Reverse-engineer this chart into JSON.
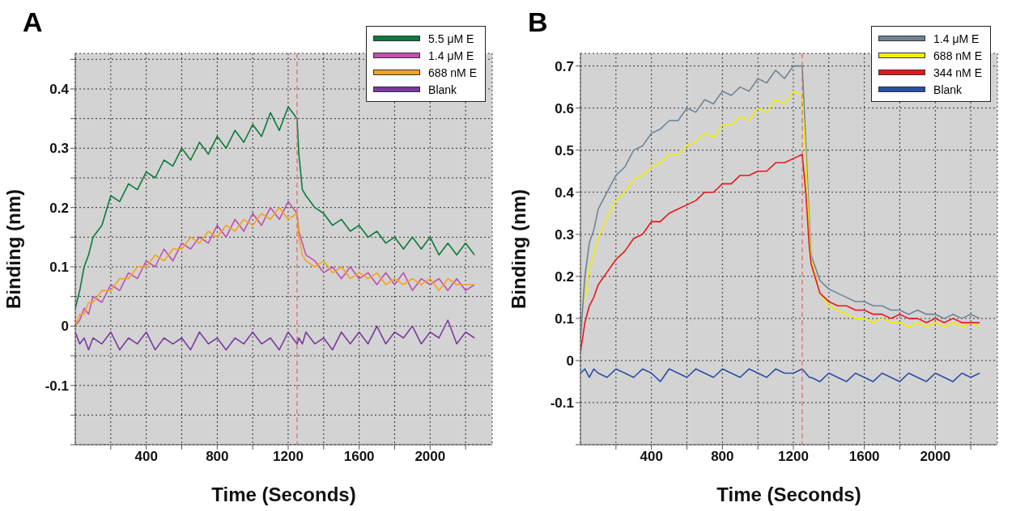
{
  "chart_data": [
    {
      "type": "line",
      "title": "A",
      "xlabel": "Time (Seconds)",
      "ylabel": "Binding (nm)",
      "xlim": [
        0,
        2350
      ],
      "ylim": [
        -0.2,
        0.46
      ],
      "xticks": [
        {
          "value": 200,
          "label": null
        },
        400,
        {
          "value": 600,
          "label": null
        },
        800,
        {
          "value": 1000,
          "label": null
        },
        1200,
        {
          "value": 1400,
          "label": null
        },
        1600,
        {
          "value": 1800,
          "label": null
        },
        2000,
        {
          "value": 2200,
          "label": null
        }
      ],
      "yticks": [
        {
          "value": -0.2,
          "label": null
        },
        {
          "value": -0.15,
          "label": null
        },
        -0.1,
        {
          "value": -0.05,
          "label": null
        },
        0,
        {
          "value": 0.05,
          "label": null
        },
        0.1,
        {
          "value": 0.15,
          "label": null
        },
        0.2,
        {
          "value": 0.25,
          "label": null
        },
        0.3,
        {
          "value": 0.35,
          "label": null
        },
        0.4,
        {
          "value": 0.45,
          "label": null
        }
      ],
      "grid": true,
      "legend": "top right",
      "marker": "none",
      "line_style": "solid",
      "ref_lines": [
        {
          "axis": "x",
          "value": 1250,
          "color": "#e06666",
          "line_style": "dashed"
        }
      ],
      "x": [
        0,
        25,
        50,
        75,
        100,
        150,
        200,
        250,
        300,
        350,
        400,
        450,
        500,
        550,
        600,
        650,
        700,
        750,
        800,
        850,
        900,
        950,
        1000,
        1050,
        1100,
        1150,
        1200,
        1250,
        1260,
        1280,
        1300,
        1350,
        1400,
        1450,
        1500,
        1550,
        1600,
        1650,
        1700,
        1750,
        1800,
        1850,
        1900,
        1950,
        2000,
        2050,
        2100,
        2150,
        2200,
        2250
      ],
      "series": [
        {
          "name": "5.5 μM E",
          "color": "#0b7a3c",
          "values": [
            0.03,
            0.06,
            0.1,
            0.12,
            0.15,
            0.17,
            0.22,
            0.21,
            0.24,
            0.23,
            0.26,
            0.25,
            0.28,
            0.27,
            0.3,
            0.28,
            0.31,
            0.29,
            0.32,
            0.3,
            0.33,
            0.31,
            0.34,
            0.32,
            0.36,
            0.33,
            0.37,
            0.35,
            0.29,
            0.23,
            0.22,
            0.2,
            0.19,
            0.17,
            0.18,
            0.16,
            0.17,
            0.15,
            0.16,
            0.14,
            0.15,
            0.13,
            0.15,
            0.13,
            0.15,
            0.12,
            0.14,
            0.12,
            0.14,
            0.12
          ]
        },
        {
          "name": "1.4 μM E",
          "color": "#c050b0",
          "values": [
            0.0,
            0.01,
            0.03,
            0.02,
            0.05,
            0.04,
            0.07,
            0.06,
            0.09,
            0.08,
            0.11,
            0.1,
            0.13,
            0.11,
            0.14,
            0.13,
            0.15,
            0.14,
            0.17,
            0.15,
            0.18,
            0.16,
            0.19,
            0.17,
            0.2,
            0.18,
            0.21,
            0.19,
            0.16,
            0.14,
            0.12,
            0.11,
            0.09,
            0.1,
            0.08,
            0.1,
            0.08,
            0.09,
            0.07,
            0.09,
            0.07,
            0.09,
            0.06,
            0.08,
            0.07,
            0.08,
            0.06,
            0.08,
            0.06,
            0.07
          ]
        },
        {
          "name": "688 nM E",
          "color": "#f7a21b",
          "values": [
            0.0,
            0.02,
            0.02,
            0.04,
            0.04,
            0.06,
            0.06,
            0.08,
            0.08,
            0.1,
            0.1,
            0.12,
            0.11,
            0.13,
            0.13,
            0.15,
            0.14,
            0.16,
            0.15,
            0.17,
            0.16,
            0.18,
            0.17,
            0.19,
            0.18,
            0.2,
            0.18,
            0.19,
            0.15,
            0.12,
            0.11,
            0.1,
            0.11,
            0.09,
            0.1,
            0.08,
            0.09,
            0.08,
            0.09,
            0.07,
            0.08,
            0.07,
            0.08,
            0.07,
            0.08,
            0.06,
            0.08,
            0.07,
            0.07,
            0.07
          ]
        },
        {
          "name": "Blank",
          "color": "#7a3aa0",
          "values": [
            -0.01,
            -0.03,
            -0.02,
            -0.04,
            -0.02,
            -0.03,
            -0.01,
            -0.04,
            -0.02,
            -0.03,
            -0.01,
            -0.04,
            -0.02,
            -0.03,
            -0.02,
            -0.04,
            -0.01,
            -0.03,
            -0.02,
            -0.04,
            -0.02,
            -0.03,
            -0.01,
            -0.03,
            -0.02,
            -0.04,
            -0.01,
            -0.03,
            -0.02,
            -0.03,
            -0.01,
            -0.03,
            -0.02,
            -0.04,
            -0.01,
            -0.03,
            -0.01,
            -0.03,
            0.0,
            -0.03,
            -0.01,
            -0.02,
            0.0,
            -0.03,
            -0.01,
            -0.02,
            0.01,
            -0.03,
            -0.01,
            -0.02
          ]
        }
      ]
    },
    {
      "type": "line",
      "title": "B",
      "xlabel": "Time (Seconds)",
      "ylabel": "Binding (nm)",
      "xlim": [
        0,
        2350
      ],
      "ylim": [
        -0.2,
        0.73
      ],
      "xticks": [
        {
          "value": 200,
          "label": null
        },
        400,
        {
          "value": 600,
          "label": null
        },
        800,
        {
          "value": 1000,
          "label": null
        },
        1200,
        {
          "value": 1400,
          "label": null
        },
        1600,
        {
          "value": 1800,
          "label": null
        },
        2000,
        {
          "value": 2200,
          "label": null
        }
      ],
      "yticks": [
        {
          "value": -0.2,
          "label": null
        },
        -0.1,
        0,
        0.1,
        0.2,
        0.3,
        0.4,
        0.5,
        0.6,
        0.7
      ],
      "grid": true,
      "legend": "top right",
      "marker": "none",
      "line_style": "solid",
      "ref_lines": [
        {
          "axis": "x",
          "value": 1250,
          "color": "#e06666",
          "line_style": "dashed"
        }
      ],
      "x": [
        0,
        25,
        50,
        75,
        100,
        150,
        200,
        250,
        300,
        350,
        400,
        450,
        500,
        550,
        600,
        650,
        700,
        750,
        800,
        850,
        900,
        950,
        1000,
        1050,
        1100,
        1150,
        1200,
        1250,
        1270,
        1290,
        1300,
        1350,
        1400,
        1450,
        1500,
        1550,
        1600,
        1650,
        1700,
        1750,
        1800,
        1850,
        1900,
        1950,
        2000,
        2050,
        2100,
        2150,
        2200,
        2250
      ],
      "series": [
        {
          "name": "1.4 μM E",
          "color": "#6f8496",
          "values": [
            0.05,
            0.2,
            0.28,
            0.31,
            0.36,
            0.4,
            0.44,
            0.46,
            0.5,
            0.51,
            0.54,
            0.55,
            0.57,
            0.57,
            0.6,
            0.59,
            0.62,
            0.61,
            0.64,
            0.63,
            0.65,
            0.64,
            0.67,
            0.66,
            0.69,
            0.67,
            0.7,
            0.7,
            0.52,
            0.33,
            0.25,
            0.19,
            0.17,
            0.16,
            0.15,
            0.14,
            0.14,
            0.13,
            0.13,
            0.12,
            0.12,
            0.11,
            0.12,
            0.11,
            0.11,
            0.1,
            0.11,
            0.1,
            0.11,
            0.1
          ]
        },
        {
          "name": "688 nM E",
          "color": "#f2ee00",
          "values": [
            null,
            0.14,
            0.22,
            0.25,
            0.29,
            0.34,
            0.38,
            0.4,
            0.43,
            0.44,
            0.46,
            0.47,
            0.49,
            0.49,
            0.51,
            0.52,
            0.54,
            0.53,
            0.56,
            0.56,
            0.58,
            0.57,
            0.6,
            0.59,
            0.62,
            0.61,
            0.64,
            0.63,
            0.48,
            0.3,
            0.24,
            0.16,
            0.13,
            0.12,
            0.11,
            0.1,
            0.1,
            0.09,
            0.1,
            0.09,
            0.09,
            0.08,
            0.09,
            0.08,
            0.09,
            0.08,
            0.09,
            0.08,
            0.09,
            0.08
          ]
        },
        {
          "name": "344 nM E",
          "color": "#e8161b",
          "values": [
            0.02,
            0.09,
            0.13,
            0.15,
            0.18,
            0.21,
            0.24,
            0.26,
            0.29,
            0.3,
            0.33,
            0.33,
            0.35,
            0.36,
            0.37,
            0.38,
            0.4,
            0.4,
            0.42,
            0.42,
            0.44,
            0.44,
            0.45,
            0.45,
            0.47,
            0.47,
            0.48,
            0.49,
            0.4,
            0.27,
            0.23,
            0.16,
            0.14,
            0.13,
            0.13,
            0.12,
            0.12,
            0.11,
            0.11,
            0.1,
            0.11,
            0.1,
            0.1,
            0.09,
            0.1,
            0.09,
            0.1,
            0.09,
            0.09,
            0.09
          ]
        },
        {
          "name": "Blank",
          "color": "#2a4fa6",
          "values": [
            -0.03,
            -0.02,
            -0.04,
            -0.02,
            -0.03,
            -0.04,
            -0.02,
            -0.03,
            -0.04,
            -0.02,
            -0.03,
            -0.05,
            -0.02,
            -0.03,
            -0.04,
            -0.02,
            -0.03,
            -0.04,
            -0.02,
            -0.03,
            -0.04,
            -0.02,
            -0.03,
            -0.04,
            -0.02,
            -0.03,
            -0.03,
            -0.02,
            -0.03,
            -0.04,
            -0.04,
            -0.05,
            -0.03,
            -0.04,
            -0.05,
            -0.03,
            -0.04,
            -0.05,
            -0.03,
            -0.04,
            -0.05,
            -0.03,
            -0.04,
            -0.05,
            -0.03,
            -0.04,
            -0.05,
            -0.03,
            -0.04,
            -0.03
          ]
        }
      ]
    }
  ]
}
